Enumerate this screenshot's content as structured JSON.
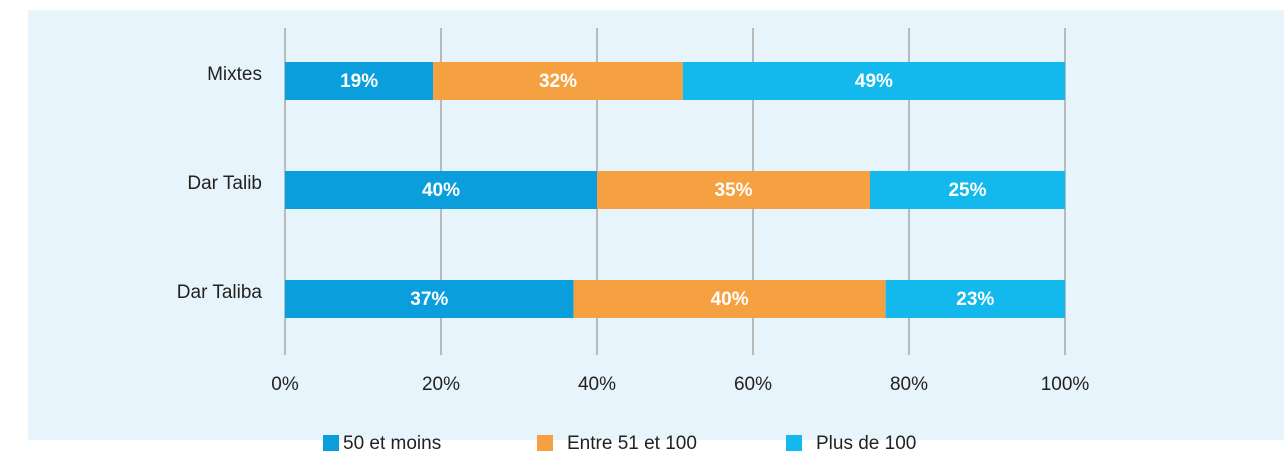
{
  "chart_data": {
    "type": "stacked-bar-horizontal",
    "categories": [
      "Mixtes",
      "Dar Talib",
      "Dar Taliba"
    ],
    "series": [
      {
        "name": "50 et moins",
        "color": "#0a9edc",
        "values": [
          19,
          40,
          37
        ],
        "value_labels": [
          "19%",
          "40%",
          "37%"
        ]
      },
      {
        "name": "Entre 51 et 100",
        "color": "#f5a142",
        "values": [
          32,
          35,
          40
        ],
        "value_labels": [
          "32%",
          "35%",
          "40%"
        ]
      },
      {
        "name": "Plus de 100",
        "color": "#13b9ec",
        "values": [
          49,
          25,
          23
        ],
        "value_labels": [
          "49%",
          "25%",
          "23%"
        ]
      }
    ],
    "xlim": [
      0,
      100
    ],
    "xticks": [
      {
        "value": 0,
        "label": "0%"
      },
      {
        "value": 20,
        "label": "20%"
      },
      {
        "value": 40,
        "label": "40%"
      },
      {
        "value": 60,
        "label": "60%"
      },
      {
        "value": 80,
        "label": "80%"
      },
      {
        "value": 100,
        "label": "100%"
      }
    ],
    "grid": true,
    "legend": "bottom"
  }
}
